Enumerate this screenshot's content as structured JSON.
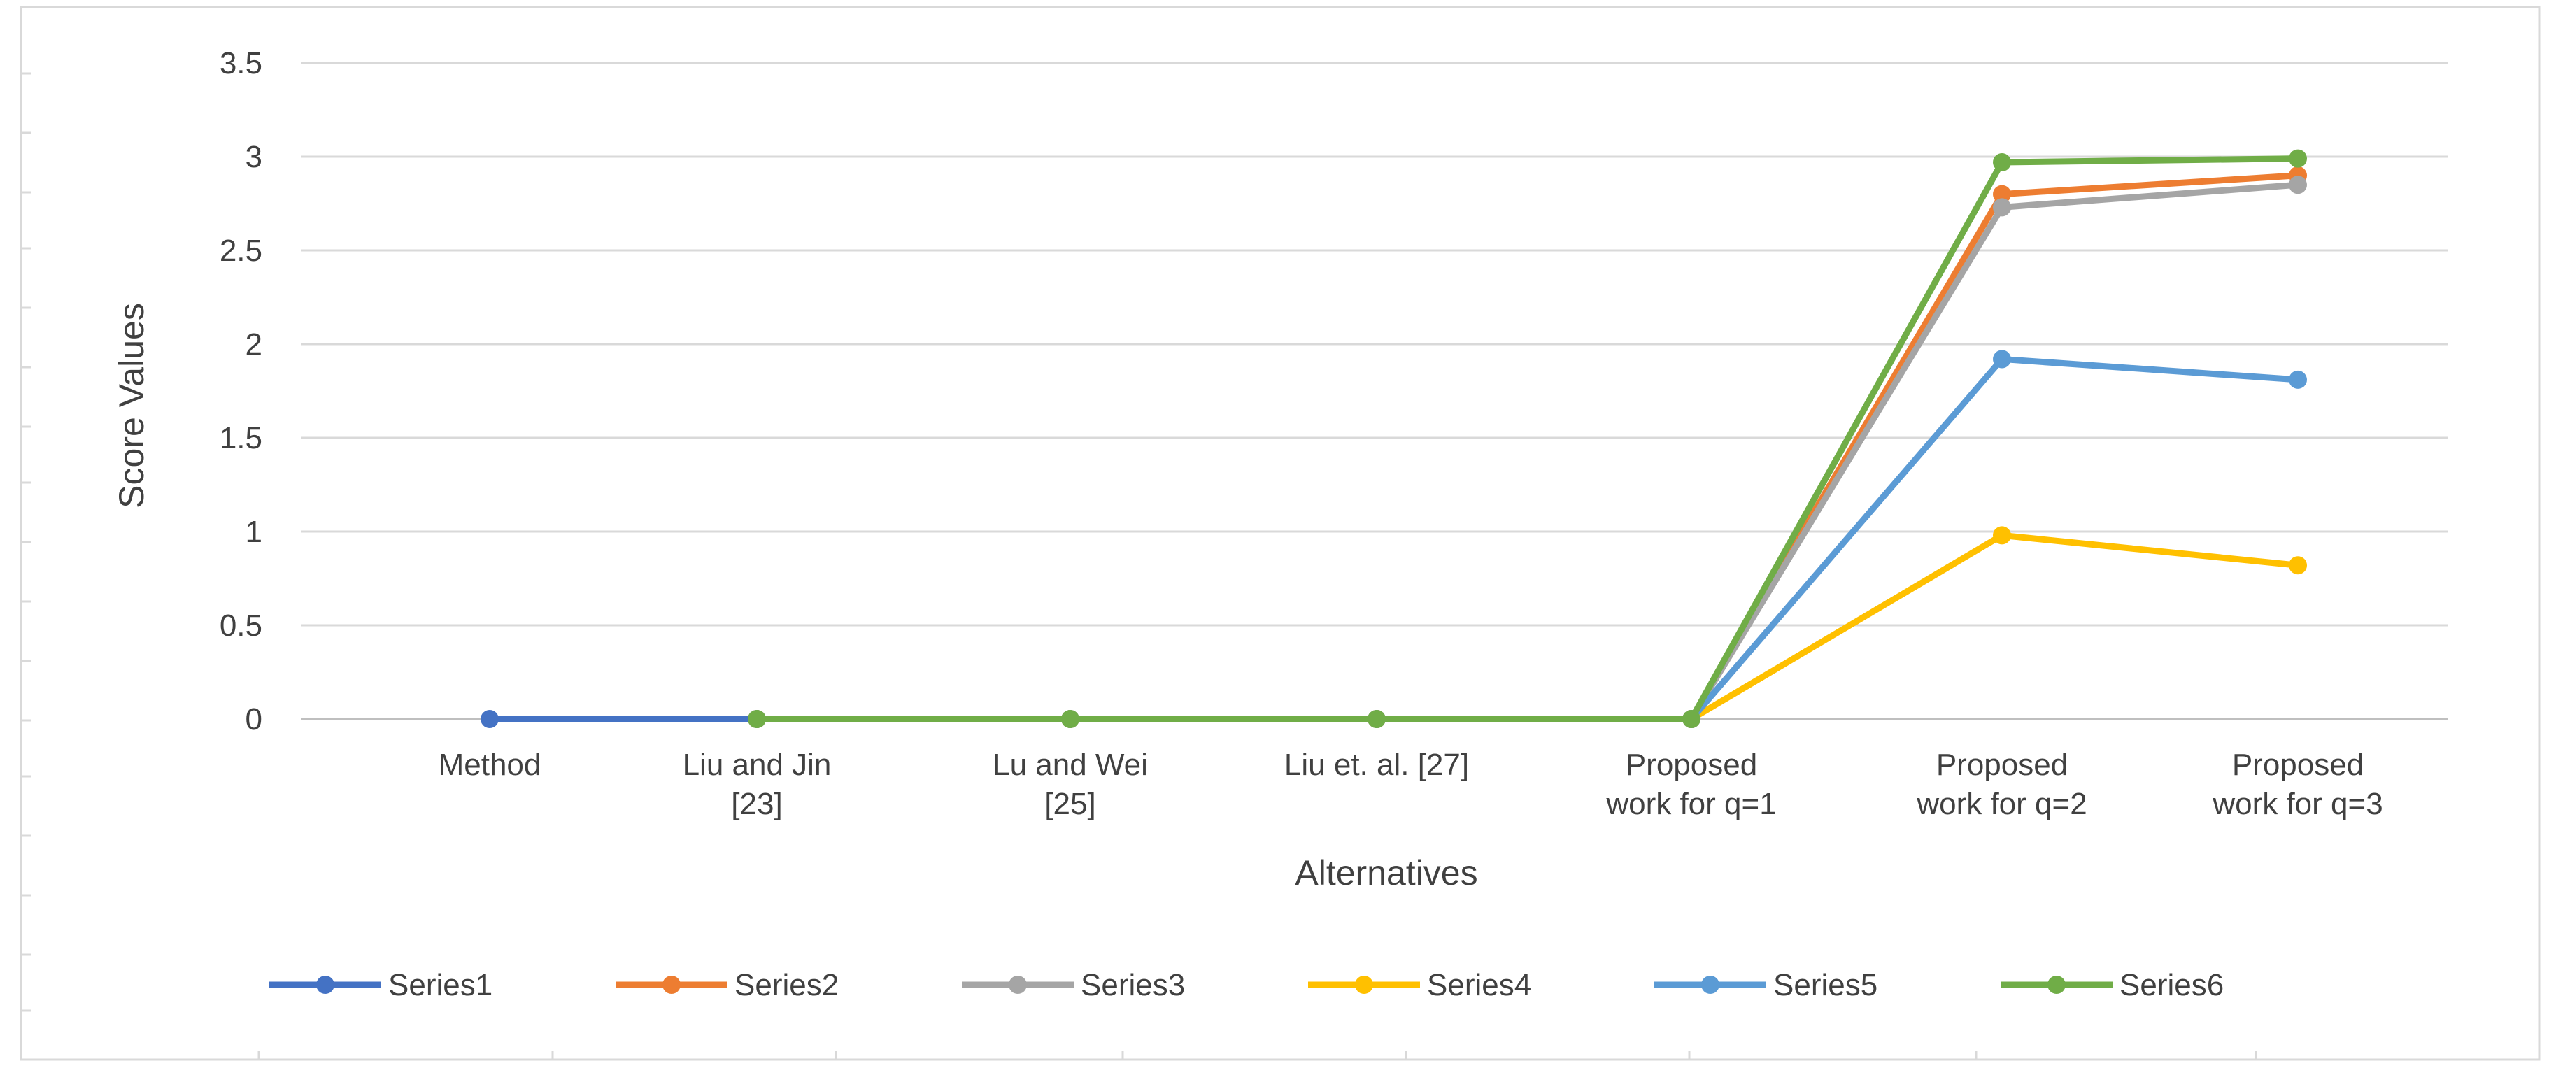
{
  "chart_data": {
    "type": "line",
    "categories": [
      [
        "Method"
      ],
      [
        "Liu and Jin",
        "[23]"
      ],
      [
        "Lu and Wei",
        "[25]"
      ],
      [
        "Liu et. al. [27]"
      ],
      [
        "Proposed",
        "work for q=1"
      ],
      [
        "Proposed",
        "work for q=2"
      ],
      [
        "Proposed",
        "work for q=3"
      ]
    ],
    "xlabel": "Alternatives",
    "ylabel": "Score Values",
    "ylim": [
      0,
      3.5
    ],
    "yticks": [
      "0",
      "0.5",
      "1",
      "1.5",
      "2",
      "2.5",
      "3",
      "3.5"
    ],
    "ytick_values": [
      0,
      0.5,
      1,
      1.5,
      2,
      2.5,
      3,
      3.5
    ],
    "grid": true,
    "legend_position": "bottom",
    "series": [
      {
        "name": "Series1",
        "color": "#4472C4",
        "values": [
          0,
          0,
          null,
          null,
          null,
          null,
          null
        ]
      },
      {
        "name": "Series2",
        "color": "#ED7D31",
        "values": [
          null,
          0,
          0,
          0,
          0,
          2.8,
          2.9
        ]
      },
      {
        "name": "Series3",
        "color": "#A5A5A5",
        "values": [
          null,
          0,
          0,
          0,
          0,
          2.73,
          2.85
        ]
      },
      {
        "name": "Series4",
        "color": "#FFC000",
        "values": [
          null,
          0,
          0,
          0,
          0,
          0.98,
          0.82
        ]
      },
      {
        "name": "Series5",
        "color": "#5B9BD5",
        "values": [
          null,
          0,
          0,
          0,
          0,
          1.92,
          1.81
        ]
      },
      {
        "name": "Series6",
        "color": "#70AD47",
        "values": [
          null,
          0,
          0,
          0,
          0,
          2.97,
          2.99
        ]
      }
    ]
  }
}
